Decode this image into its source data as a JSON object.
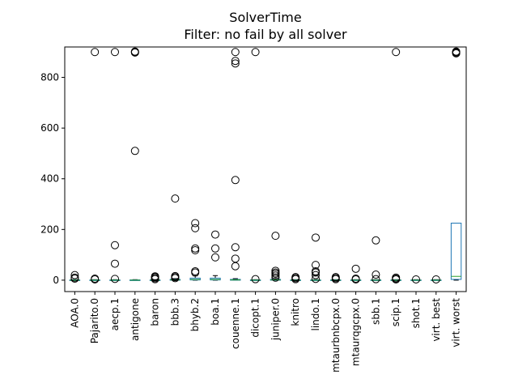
{
  "chart_data": {
    "type": "box",
    "title": "SolverTime",
    "subtitle": "Filter: no fail by all solver",
    "ylim": [
      -45,
      920
    ],
    "yticks": [
      0,
      200,
      400,
      600,
      800
    ],
    "grid": false,
    "colors": {
      "box": "#1f77b4",
      "median": "#2ca02c",
      "whisker": "#000000",
      "flier": "#000000"
    },
    "solvers": [
      {
        "label": "AOA.0",
        "q1": 0,
        "median": 0,
        "q3": 1,
        "whislo": 0,
        "whishi": 2,
        "fliers": [
          6,
          10,
          20
        ]
      },
      {
        "label": "Pajarito.0",
        "q1": 0,
        "median": 0,
        "q3": 1,
        "whislo": 0,
        "whishi": 2,
        "fliers": [
          3,
          6,
          900
        ]
      },
      {
        "label": "aecp.1",
        "q1": 0,
        "median": 0,
        "q3": 1,
        "whislo": 0,
        "whishi": 2,
        "fliers": [
          5,
          65,
          138,
          900
        ]
      },
      {
        "label": "antigone",
        "q1": 0,
        "median": 0,
        "q3": 1,
        "whislo": 0,
        "whishi": 2,
        "fliers": [
          510,
          898,
          900,
          902
        ]
      },
      {
        "label": "baron",
        "q1": 0,
        "median": 0,
        "q3": 1,
        "whislo": 0,
        "whishi": 2,
        "fliers": [
          4,
          8,
          12,
          15
        ]
      },
      {
        "label": "bbb.3",
        "q1": 0,
        "median": 1,
        "q3": 3,
        "whislo": 0,
        "whishi": 6,
        "fliers": [
          8,
          12,
          16,
          322
        ]
      },
      {
        "label": "bhyb.2",
        "q1": 1,
        "median": 3,
        "q3": 8,
        "whislo": 0,
        "whishi": 17,
        "fliers": [
          30,
          35,
          118,
          125,
          205,
          225
        ]
      },
      {
        "label": "boa.1",
        "q1": 1,
        "median": 3,
        "q3": 8,
        "whislo": 0,
        "whishi": 18,
        "fliers": [
          90,
          125,
          180
        ]
      },
      {
        "label": "couenne.1",
        "q1": 0,
        "median": 1,
        "q3": 3,
        "whislo": 0,
        "whishi": 6,
        "fliers": [
          55,
          85,
          130,
          395,
          855,
          865,
          900
        ]
      },
      {
        "label": "dicopt.1",
        "q1": 0,
        "median": 0,
        "q3": 1,
        "whislo": 0,
        "whishi": 2,
        "fliers": [
          4,
          900
        ]
      },
      {
        "label": "juniper.0",
        "q1": 0,
        "median": 1,
        "q3": 3,
        "whislo": 0,
        "whishi": 6,
        "fliers": [
          10,
          18,
          25,
          30,
          37,
          175
        ]
      },
      {
        "label": "knitro",
        "q1": 0,
        "median": 0,
        "q3": 1,
        "whislo": 0,
        "whishi": 2,
        "fliers": [
          4,
          8,
          12
        ]
      },
      {
        "label": "lindo.1",
        "q1": 0,
        "median": 0,
        "q3": 1,
        "whislo": 0,
        "whishi": 2,
        "fliers": [
          5,
          20,
          30,
          35,
          60,
          168
        ]
      },
      {
        "label": "mtaurbnbcpx.0",
        "q1": 0,
        "median": 0,
        "q3": 1,
        "whislo": 0,
        "whishi": 2,
        "fliers": [
          4,
          8,
          12
        ]
      },
      {
        "label": "mtaurqgcpx.0",
        "q1": 0,
        "median": 0,
        "q3": 1,
        "whislo": 0,
        "whishi": 2,
        "fliers": [
          3,
          6,
          45
        ]
      },
      {
        "label": "sbb.1",
        "q1": 0,
        "median": 0,
        "q3": 1,
        "whislo": 0,
        "whishi": 2,
        "fliers": [
          4,
          22,
          157
        ]
      },
      {
        "label": "scip.1",
        "q1": 0,
        "median": 0,
        "q3": 1,
        "whislo": 0,
        "whishi": 2,
        "fliers": [
          3,
          6,
          10,
          900
        ]
      },
      {
        "label": "shot.1",
        "q1": 0,
        "median": 0,
        "q3": 1,
        "whislo": 0,
        "whishi": 2,
        "fliers": [
          3
        ]
      },
      {
        "label": "virt. best",
        "q1": 0,
        "median": 0,
        "q3": 1,
        "whislo": 0,
        "whishi": 2,
        "fliers": [
          3
        ]
      },
      {
        "label": "virt. worst",
        "q1": 3,
        "median": 15,
        "q3": 225,
        "whislo": 0,
        "whishi": 225,
        "fliers": [
          895,
          898,
          900,
          902
        ]
      }
    ]
  }
}
